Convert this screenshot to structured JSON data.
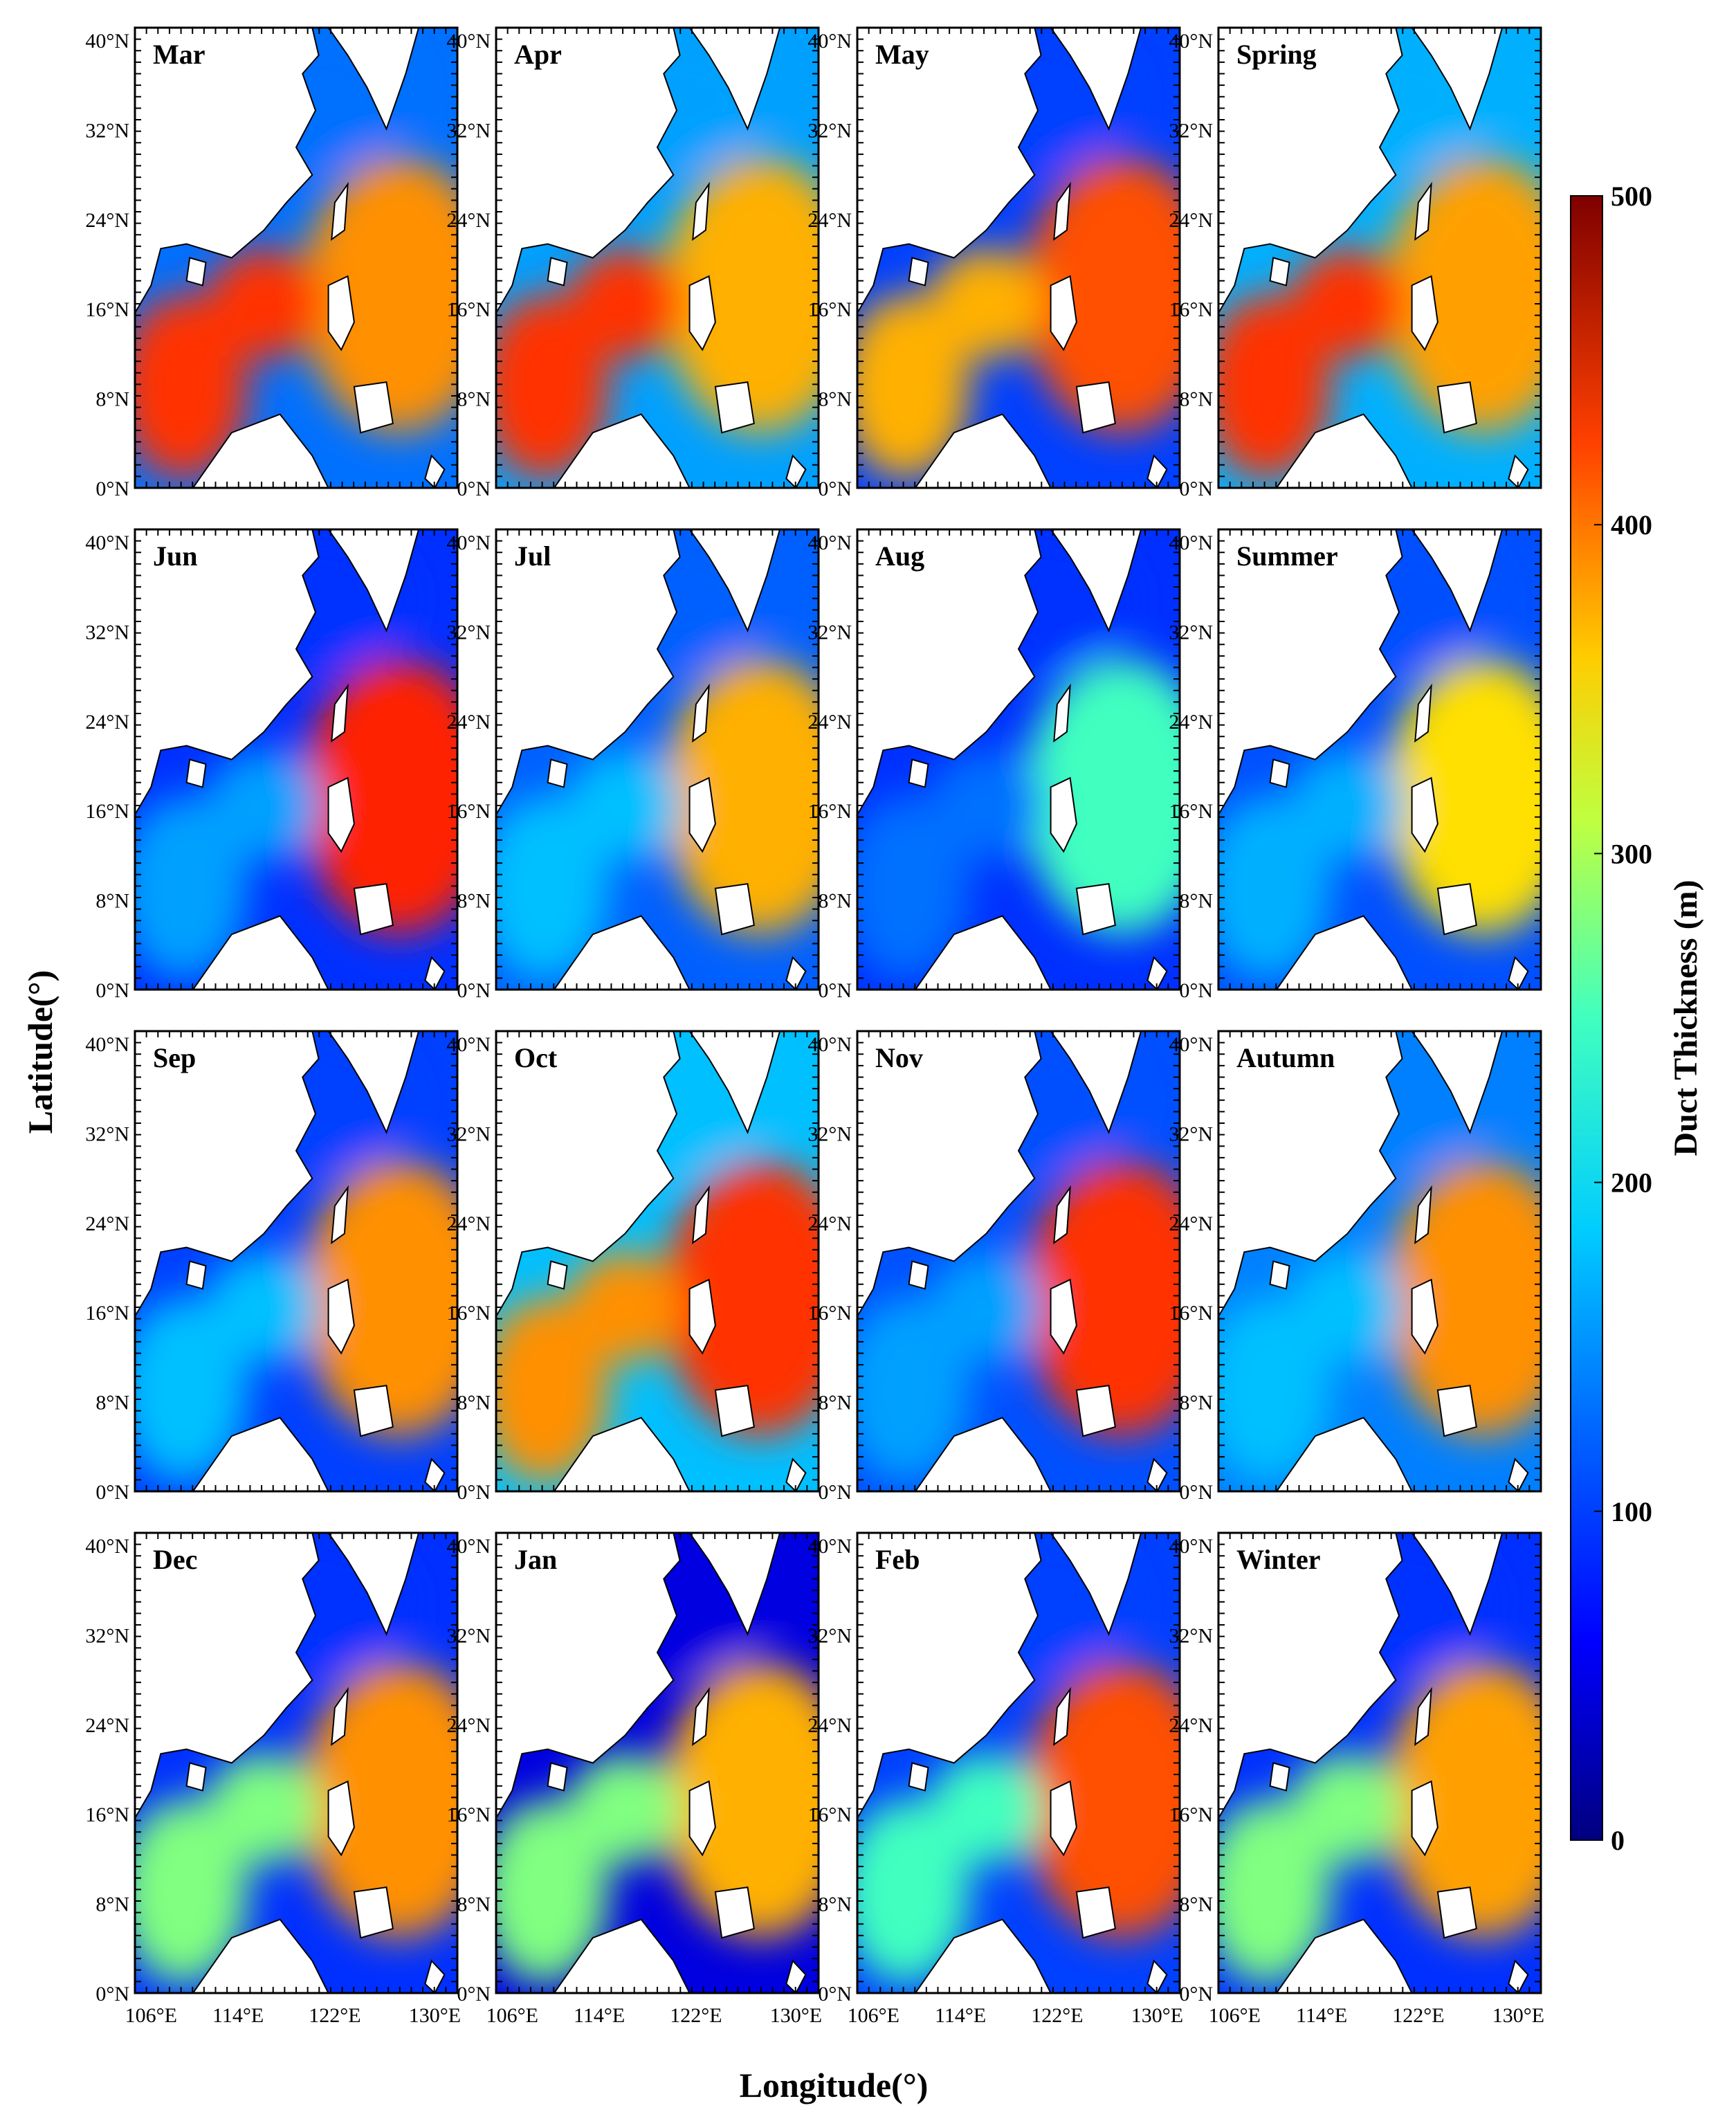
{
  "figure": {
    "panels": [
      {
        "label": "Mar"
      },
      {
        "label": "Apr"
      },
      {
        "label": "May"
      },
      {
        "label": "Spring"
      },
      {
        "label": "Jun"
      },
      {
        "label": "Jul"
      },
      {
        "label": "Aug"
      },
      {
        "label": "Summer"
      },
      {
        "label": "Sep"
      },
      {
        "label": "Oct"
      },
      {
        "label": "Nov"
      },
      {
        "label": "Autumn"
      },
      {
        "label": "Dec"
      },
      {
        "label": "Jan"
      },
      {
        "label": "Feb"
      },
      {
        "label": "Winter"
      }
    ],
    "lat_ticks": [
      "0°N",
      "8°N",
      "16°N",
      "24°N",
      "32°N",
      "40°N"
    ],
    "lon_ticks": [
      "106°E",
      "114°E",
      "122°E",
      "130°E"
    ],
    "x_axis_title": "Longitude(°)",
    "y_axis_title": "Latitude(°)",
    "colorbar": {
      "title": "Duct   Thickness (m)",
      "ticks": [
        "0",
        "100",
        "200",
        "300",
        "400",
        "500"
      ],
      "range": [
        0,
        500
      ]
    }
  },
  "colors": {
    "jet": [
      "#00007f",
      "#0000ff",
      "#0080ff",
      "#00ffff",
      "#80ff80",
      "#ffff00",
      "#ff8000",
      "#ff0000",
      "#7f0000"
    ],
    "land": "#ffffff",
    "coast": "#000000"
  }
}
